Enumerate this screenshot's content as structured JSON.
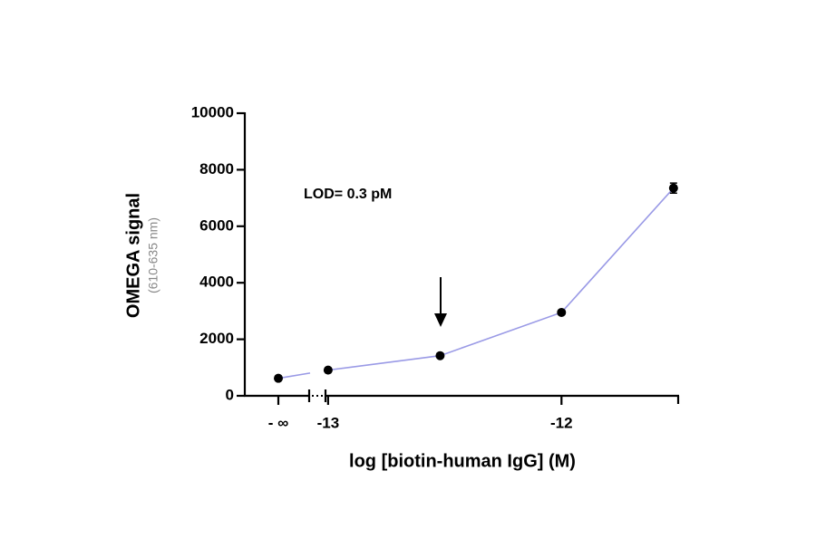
{
  "chart_data": {
    "type": "line",
    "ylabel": "OMEGA signal",
    "ylabel_sub": "(610-635 nm)",
    "xlabel": "log [biotin-human IgG] (M)",
    "annotation": "LOD= 0.3 pM",
    "zero_point": {
      "label": "- ∞",
      "value": 620
    },
    "x": [
      -13,
      -12.52,
      -12,
      -11.52
    ],
    "series": [
      {
        "color": "#9a9ae6",
        "values": [
          910,
          1420,
          2950,
          7350
        ],
        "errors": [
          40,
          60,
          60,
          180
        ]
      }
    ],
    "xlim": [
      -13.05,
      -11.5
    ],
    "xticks": [
      -13,
      -12
    ],
    "ylim": [
      0,
      10000
    ],
    "yticks": [
      0,
      2000,
      4000,
      6000,
      8000,
      10000
    ]
  }
}
